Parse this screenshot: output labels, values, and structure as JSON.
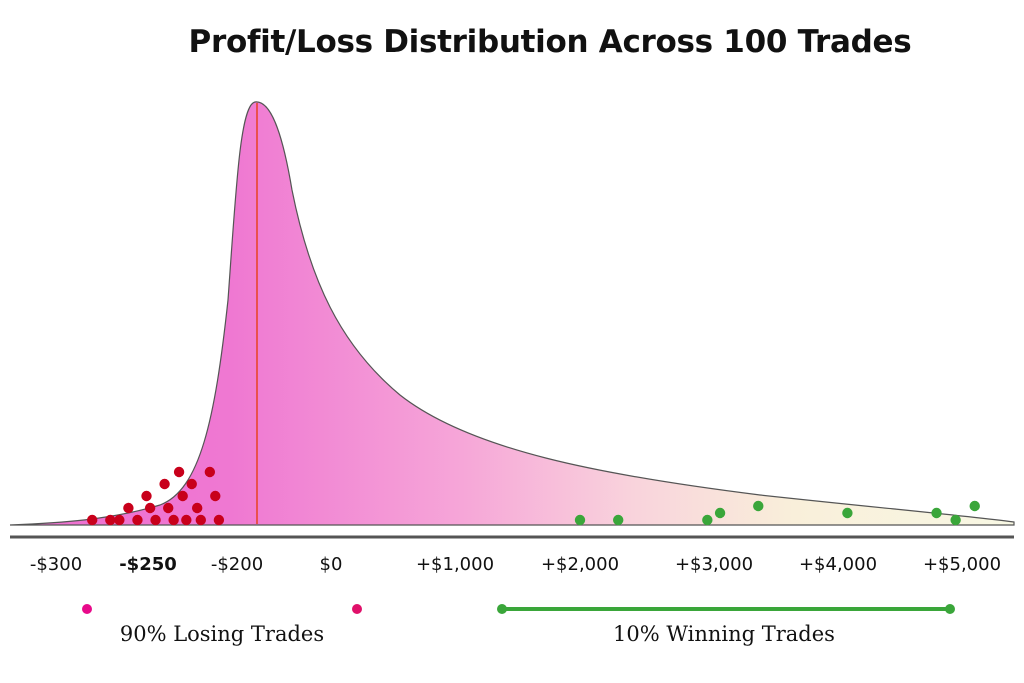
{
  "chart_data": {
    "type": "area",
    "title": "Profit/Loss Distribution Across 100 Trades",
    "x_ticks": [
      "-$300",
      "-$250",
      "-$200",
      "$0",
      "+$1,000",
      "+$2,000",
      "+$3,000",
      "+$4,000",
      "+$5,000"
    ],
    "peak_value": "-$200",
    "losing_trades_points": [
      {
        "x": "-$280",
        "y": 0
      },
      {
        "x": "-$270",
        "y": 0
      },
      {
        "x": "-$265",
        "y": 0
      },
      {
        "x": "-$260",
        "y": 1
      },
      {
        "x": "-$255",
        "y": 0
      },
      {
        "x": "-$250",
        "y": 2
      },
      {
        "x": "-$248",
        "y": 1
      },
      {
        "x": "-$245",
        "y": 0
      },
      {
        "x": "-$240",
        "y": 3
      },
      {
        "x": "-$238",
        "y": 1
      },
      {
        "x": "-$235",
        "y": 0
      },
      {
        "x": "-$232",
        "y": 4
      },
      {
        "x": "-$230",
        "y": 2
      },
      {
        "x": "-$228",
        "y": 0
      },
      {
        "x": "-$225",
        "y": 3
      },
      {
        "x": "-$222",
        "y": 1
      },
      {
        "x": "-$220",
        "y": 0
      },
      {
        "x": "-$215",
        "y": 4
      },
      {
        "x": "-$212",
        "y": 2
      },
      {
        "x": "-$210",
        "y": 0
      }
    ],
    "winning_trades_points": [
      {
        "x": "+$2,000",
        "y": 0
      },
      {
        "x": "+$2,300",
        "y": 0
      },
      {
        "x": "+$3,000",
        "y": 0
      },
      {
        "x": "+$3,100",
        "y": 1
      },
      {
        "x": "+$3,400",
        "y": 2
      },
      {
        "x": "+$4,100",
        "y": 1
      },
      {
        "x": "+$4,800",
        "y": 1
      },
      {
        "x": "+$4,950",
        "y": 0
      },
      {
        "x": "+$5,100",
        "y": 2
      }
    ],
    "losing_range_label": "90% Losing Trades",
    "winning_range_label": "10% Winning Trades",
    "colors": {
      "curve_fill_left": "#ee6fd0",
      "curve_fill_mid": "#f7a8d8",
      "curve_fill_right": "#f7f5dc",
      "curve_stroke": "#555555",
      "peak_line": "#e8452c",
      "losing_dot": "#c8001b",
      "winning_dot": "#3aa63a",
      "losing_bar_start": "#e80a8a",
      "losing_bar_dark": "#3a0a12",
      "losing_bar_end": "#d0103a",
      "winning_bar": "#3aa63a",
      "axis": "#555555"
    }
  }
}
